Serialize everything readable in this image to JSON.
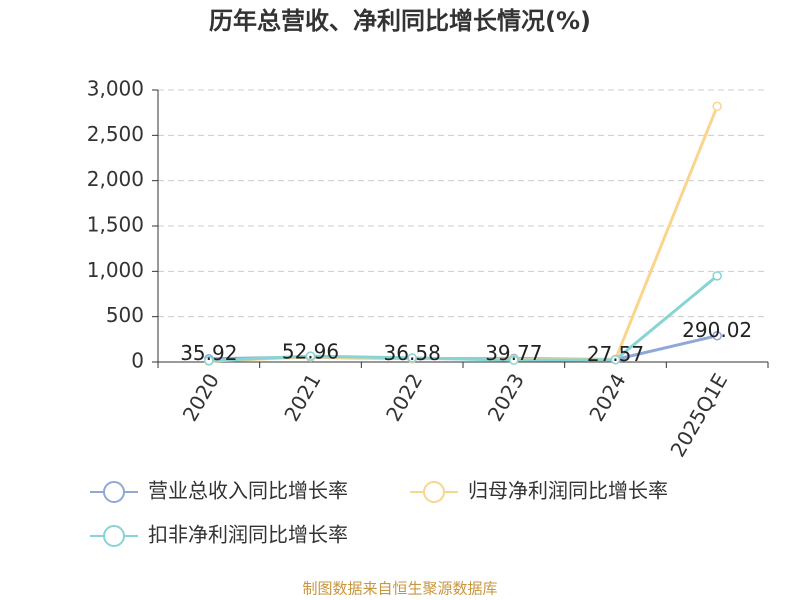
{
  "chart_data": {
    "type": "line",
    "title": "历年总营收、净利同比增长情况(%)",
    "categories": [
      "2020",
      "2021",
      "2022",
      "2023",
      "2024",
      "2025Q1E"
    ],
    "series": [
      {
        "name": "营业总收入同比增长率",
        "color": "#8fa8d8",
        "values": [
          35.92,
          52.96,
          36.58,
          39.77,
          27.57,
          290.02
        ],
        "show_labels": true
      },
      {
        "name": "归母净利润同比增长率",
        "color": "#f9d58e",
        "values": [
          10,
          55,
          40,
          30,
          30,
          2820
        ],
        "show_labels": false
      },
      {
        "name": "扣非净利润同比增长率",
        "color": "#87d4d4",
        "values": [
          15,
          65,
          45,
          20,
          25,
          950
        ],
        "show_labels": false
      }
    ],
    "ylim": [
      0,
      3000
    ],
    "yticks": [
      0,
      500,
      {
        "value": 1000,
        "label": "1,000"
      },
      {
        "value": 1500,
        "label": "1,500"
      },
      {
        "value": 2000,
        "label": "2,000"
      },
      {
        "value": 2500,
        "label": "2,500"
      },
      {
        "value": 3000,
        "label": "3,000"
      }
    ],
    "grid": true,
    "source": "制图数据来自恒生聚源数据库"
  }
}
